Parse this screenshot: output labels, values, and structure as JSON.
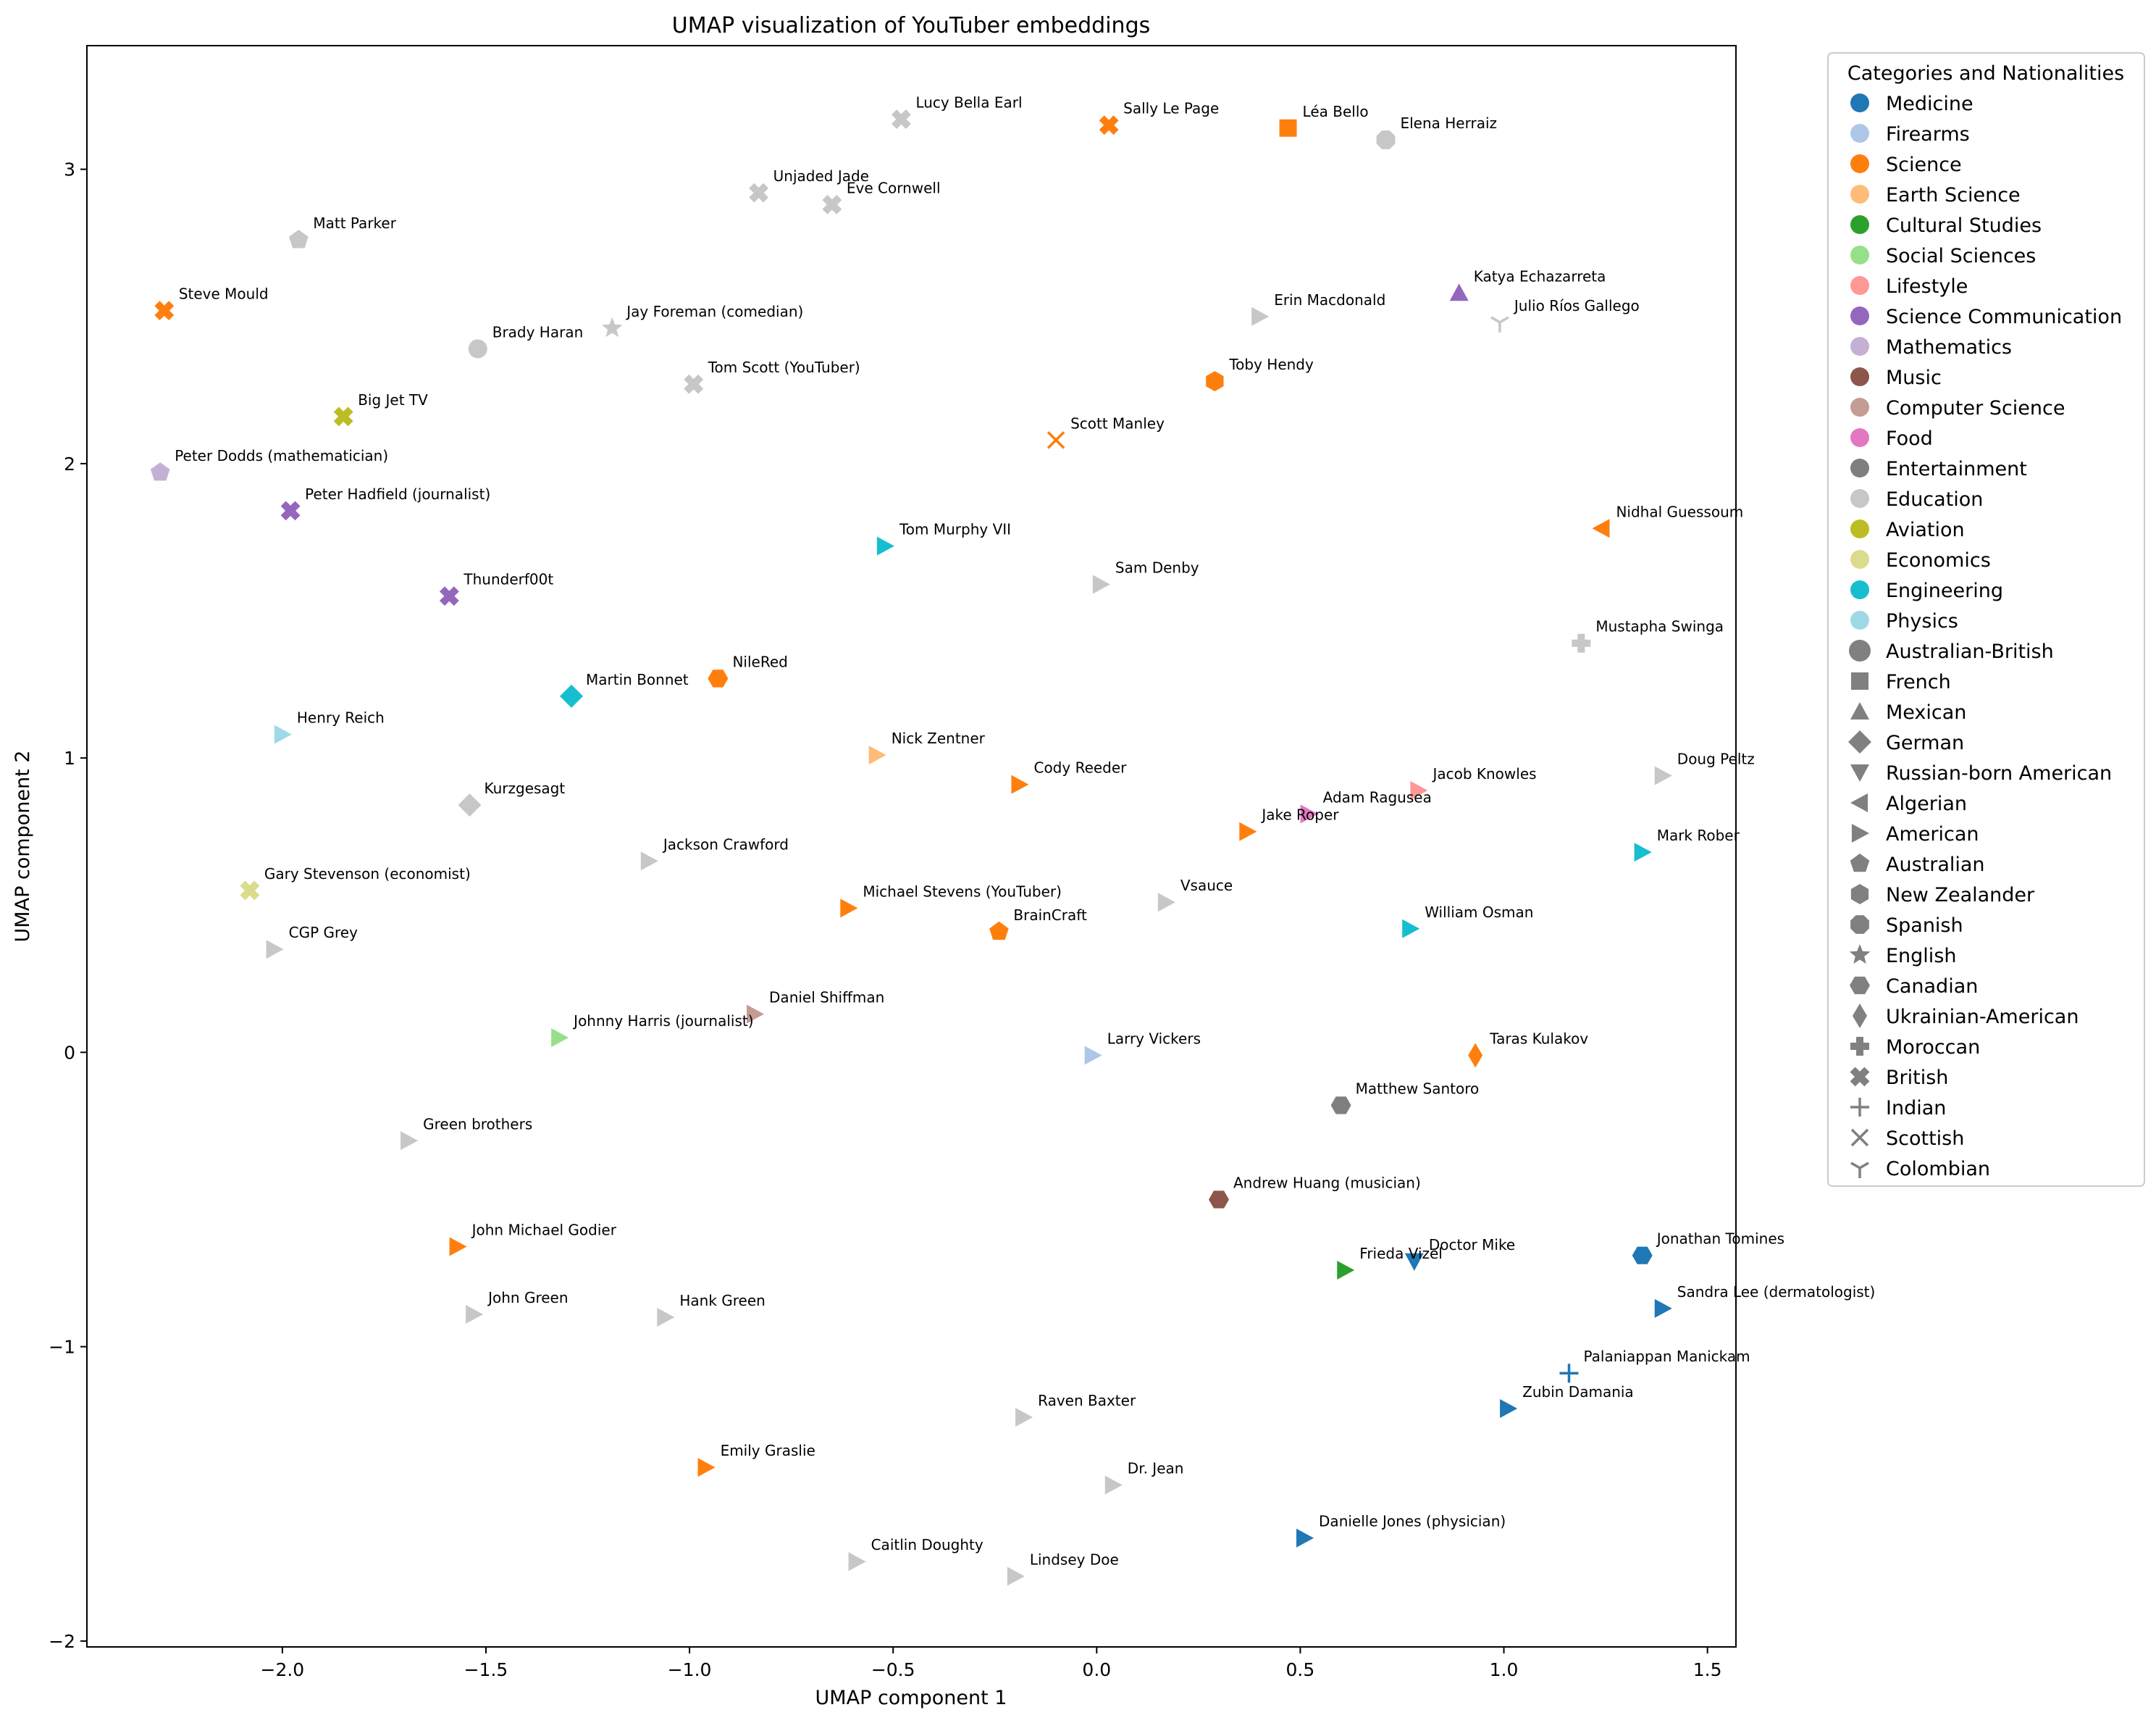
{
  "chart_data": {
    "type": "scatter",
    "title": "UMAP visualization of YouTuber embeddings",
    "xlabel": "UMAP component 1",
    "ylabel": "UMAP component 2",
    "xlim": [
      -2.48,
      1.57
    ],
    "ylim": [
      -2.02,
      3.42
    ],
    "xticks": [
      -2.0,
      -1.5,
      -1.0,
      -0.5,
      0.0,
      0.5,
      1.0,
      1.5
    ],
    "xtick_labels": [
      "−2.0",
      "−1.5",
      "−1.0",
      "−0.5",
      "0.0",
      "0.5",
      "1.0",
      "1.5"
    ],
    "yticks": [
      -2,
      -1,
      0,
      1,
      2,
      3
    ],
    "ytick_labels": [
      "−2",
      "−1",
      "0",
      "1",
      "2",
      "3"
    ],
    "grid": false,
    "legend": {
      "title": "Categories and Nationalities",
      "placement": "outside-right-top",
      "categories": [
        {
          "name": "Medicine",
          "color": "#1f77b4"
        },
        {
          "name": "Firearms",
          "color": "#aec7e8"
        },
        {
          "name": "Science",
          "color": "#ff7f0e"
        },
        {
          "name": "Earth Science",
          "color": "#ffbb78"
        },
        {
          "name": "Cultural Studies",
          "color": "#2ca02c"
        },
        {
          "name": "Social Sciences",
          "color": "#98df8a"
        },
        {
          "name": "Lifestyle",
          "color": "#ff9896"
        },
        {
          "name": "Science Communication",
          "color": "#9467bd"
        },
        {
          "name": "Mathematics",
          "color": "#c5b0d5"
        },
        {
          "name": "Music",
          "color": "#8c564b"
        },
        {
          "name": "Computer Science",
          "color": "#c49c94"
        },
        {
          "name": "Food",
          "color": "#e377c2"
        },
        {
          "name": "Entertainment",
          "color": "#7f7f7f"
        },
        {
          "name": "Education",
          "color": "#c7c7c7"
        },
        {
          "name": "Aviation",
          "color": "#bcbd22"
        },
        {
          "name": "Economics",
          "color": "#dbdb8d"
        },
        {
          "name": "Engineering",
          "color": "#17becf"
        },
        {
          "name": "Physics",
          "color": "#9edae5"
        }
      ],
      "nationalities": [
        {
          "name": "Australian-British",
          "marker": "circle"
        },
        {
          "name": "French",
          "marker": "square"
        },
        {
          "name": "Mexican",
          "marker": "triangle-up"
        },
        {
          "name": "German",
          "marker": "diamond"
        },
        {
          "name": "Russian-born American",
          "marker": "triangle-down"
        },
        {
          "name": "Algerian",
          "marker": "triangle-left"
        },
        {
          "name": "American",
          "marker": "triangle-right"
        },
        {
          "name": "Australian",
          "marker": "pentagon"
        },
        {
          "name": "New Zealander",
          "marker": "hexagon"
        },
        {
          "name": "Spanish",
          "marker": "octagon"
        },
        {
          "name": "English",
          "marker": "star"
        },
        {
          "name": "Canadian",
          "marker": "hexagon2"
        },
        {
          "name": "Ukrainian-American",
          "marker": "thin-diamond"
        },
        {
          "name": "Moroccan",
          "marker": "plus-filled"
        },
        {
          "name": "British",
          "marker": "x-filled"
        },
        {
          "name": "Indian",
          "marker": "plus"
        },
        {
          "name": "Scottish",
          "marker": "x"
        },
        {
          "name": "Colombian",
          "marker": "tri-down"
        }
      ]
    },
    "points": [
      {
        "label": "Lucy Bella Earl",
        "x": -0.48,
        "y": 3.17,
        "category": "Education",
        "nationality": "British"
      },
      {
        "label": "Sally Le Page",
        "x": 0.03,
        "y": 3.15,
        "category": "Science",
        "nationality": "British"
      },
      {
        "label": "Léa Bello",
        "x": 0.47,
        "y": 3.14,
        "category": "Science",
        "nationality": "French"
      },
      {
        "label": "Elena Herraiz",
        "x": 0.71,
        "y": 3.1,
        "category": "Education",
        "nationality": "Spanish"
      },
      {
        "label": "Unjaded Jade",
        "x": -0.83,
        "y": 2.92,
        "category": "Education",
        "nationality": "British"
      },
      {
        "label": "Eve Cornwell",
        "x": -0.65,
        "y": 2.88,
        "category": "Education",
        "nationality": "British"
      },
      {
        "label": "Matt Parker",
        "x": -1.96,
        "y": 2.76,
        "category": "Education",
        "nationality": "Australian"
      },
      {
        "label": "Steve Mould",
        "x": -2.29,
        "y": 2.52,
        "category": "Science",
        "nationality": "British"
      },
      {
        "label": "Katya Echazarreta",
        "x": 0.89,
        "y": 2.58,
        "category": "Science Communication",
        "nationality": "Mexican"
      },
      {
        "label": "Erin Macdonald",
        "x": 0.4,
        "y": 2.5,
        "category": "Education",
        "nationality": "American"
      },
      {
        "label": "Julio Ríos Gallego",
        "x": 0.99,
        "y": 2.48,
        "category": "Education",
        "nationality": "Colombian"
      },
      {
        "label": "Jay Foreman (comedian)",
        "x": -1.19,
        "y": 2.46,
        "category": "Education",
        "nationality": "English"
      },
      {
        "label": "Brady Haran",
        "x": -1.52,
        "y": 2.39,
        "category": "Education",
        "nationality": "Australian-British"
      },
      {
        "label": "Toby Hendy",
        "x": 0.29,
        "y": 2.28,
        "category": "Science",
        "nationality": "New Zealander"
      },
      {
        "label": "Tom Scott (YouTuber)",
        "x": -0.99,
        "y": 2.27,
        "category": "Education",
        "nationality": "British"
      },
      {
        "label": "Big Jet TV",
        "x": -1.85,
        "y": 2.16,
        "category": "Aviation",
        "nationality": "British"
      },
      {
        "label": "Scott Manley",
        "x": -0.1,
        "y": 2.08,
        "category": "Science",
        "nationality": "Scottish"
      },
      {
        "label": "Peter Dodds (mathematician)",
        "x": -2.3,
        "y": 1.97,
        "category": "Mathematics",
        "nationality": "Australian"
      },
      {
        "label": "Peter Hadfield (journalist)",
        "x": -1.98,
        "y": 1.84,
        "category": "Science Communication",
        "nationality": "British"
      },
      {
        "label": "Nidhal Guessoum",
        "x": 1.24,
        "y": 1.78,
        "category": "Science",
        "nationality": "Algerian"
      },
      {
        "label": "Tom Murphy VII",
        "x": -0.52,
        "y": 1.72,
        "category": "Engineering",
        "nationality": "American"
      },
      {
        "label": "Sam Denby",
        "x": 0.01,
        "y": 1.59,
        "category": "Education",
        "nationality": "American"
      },
      {
        "label": "Thunderf00t",
        "x": -1.59,
        "y": 1.55,
        "category": "Science Communication",
        "nationality": "British"
      },
      {
        "label": "Mustapha Swinga",
        "x": 1.19,
        "y": 1.39,
        "category": "Education",
        "nationality": "Moroccan"
      },
      {
        "label": "NileRed",
        "x": -0.93,
        "y": 1.27,
        "category": "Science",
        "nationality": "Canadian"
      },
      {
        "label": "Martin Bonnet",
        "x": -1.29,
        "y": 1.21,
        "category": "Engineering",
        "nationality": "German"
      },
      {
        "label": "Henry Reich",
        "x": -2.0,
        "y": 1.08,
        "category": "Physics",
        "nationality": "American"
      },
      {
        "label": "Nick Zentner",
        "x": -0.54,
        "y": 1.01,
        "category": "Earth Science",
        "nationality": "American"
      },
      {
        "label": "Cody Reeder",
        "x": -0.19,
        "y": 0.91,
        "category": "Science",
        "nationality": "American"
      },
      {
        "label": "Doug Peltz",
        "x": 1.39,
        "y": 0.94,
        "category": "Education",
        "nationality": "American"
      },
      {
        "label": "Jacob Knowles",
        "x": 0.79,
        "y": 0.89,
        "category": "Lifestyle",
        "nationality": "American"
      },
      {
        "label": "Kurzgesagt",
        "x": -1.54,
        "y": 0.84,
        "category": "Education",
        "nationality": "German"
      },
      {
        "label": "Adam Ragusea",
        "x": 0.52,
        "y": 0.81,
        "category": "Food",
        "nationality": "American"
      },
      {
        "label": "Jake Roper",
        "x": 0.37,
        "y": 0.75,
        "category": "Science",
        "nationality": "American"
      },
      {
        "label": "Mark Rober",
        "x": 1.34,
        "y": 0.68,
        "category": "Engineering",
        "nationality": "American"
      },
      {
        "label": "Jackson Crawford",
        "x": -1.1,
        "y": 0.65,
        "category": "Education",
        "nationality": "American"
      },
      {
        "label": "Gary Stevenson (economist)",
        "x": -2.08,
        "y": 0.55,
        "category": "Economics",
        "nationality": "British"
      },
      {
        "label": "Vsauce",
        "x": 0.17,
        "y": 0.51,
        "category": "Education",
        "nationality": "American"
      },
      {
        "label": "Michael Stevens (YouTuber)",
        "x": -0.61,
        "y": 0.49,
        "category": "Science",
        "nationality": "American"
      },
      {
        "label": "William Osman",
        "x": 0.77,
        "y": 0.42,
        "category": "Engineering",
        "nationality": "American"
      },
      {
        "label": "BrainCraft",
        "x": -0.24,
        "y": 0.41,
        "category": "Science",
        "nationality": "Australian"
      },
      {
        "label": "CGP Grey",
        "x": -2.02,
        "y": 0.35,
        "category": "Education",
        "nationality": "American"
      },
      {
        "label": "Daniel Shiffman",
        "x": -0.84,
        "y": 0.13,
        "category": "Computer Science",
        "nationality": "American"
      },
      {
        "label": "Johnny Harris (journalist)",
        "x": -1.32,
        "y": 0.05,
        "category": "Social Sciences",
        "nationality": "American"
      },
      {
        "label": "Larry Vickers",
        "x": -0.01,
        "y": -0.01,
        "category": "Firearms",
        "nationality": "American"
      },
      {
        "label": "Taras Kulakov",
        "x": 0.93,
        "y": -0.01,
        "category": "Science",
        "nationality": "Ukrainian-American"
      },
      {
        "label": "Matthew Santoro",
        "x": 0.6,
        "y": -0.18,
        "category": "Entertainment",
        "nationality": "Canadian"
      },
      {
        "label": "Green brothers",
        "x": -1.69,
        "y": -0.3,
        "category": "Education",
        "nationality": "American"
      },
      {
        "label": "Andrew Huang (musician)",
        "x": 0.3,
        "y": -0.5,
        "category": "Music",
        "nationality": "Canadian"
      },
      {
        "label": "John Michael Godier",
        "x": -1.57,
        "y": -0.66,
        "category": "Science",
        "nationality": "American"
      },
      {
        "label": "Jonathan Tomines",
        "x": 1.34,
        "y": -0.69,
        "category": "Medicine",
        "nationality": "Canadian"
      },
      {
        "label": "Doctor Mike",
        "x": 0.78,
        "y": -0.71,
        "category": "Medicine",
        "nationality": "Russian-born American"
      },
      {
        "label": "Frieda Vizel",
        "x": 0.61,
        "y": -0.74,
        "category": "Cultural Studies",
        "nationality": "American"
      },
      {
        "label": "Sandra Lee (dermatologist)",
        "x": 1.39,
        "y": -0.87,
        "category": "Medicine",
        "nationality": "American"
      },
      {
        "label": "John Green",
        "x": -1.53,
        "y": -0.89,
        "category": "Education",
        "nationality": "American"
      },
      {
        "label": "Hank Green",
        "x": -1.06,
        "y": -0.9,
        "category": "Education",
        "nationality": "American"
      },
      {
        "label": "Palaniappan Manickam",
        "x": 1.16,
        "y": -1.09,
        "category": "Medicine",
        "nationality": "Indian"
      },
      {
        "label": "Zubin Damania",
        "x": 1.01,
        "y": -1.21,
        "category": "Medicine",
        "nationality": "American"
      },
      {
        "label": "Raven Baxter",
        "x": -0.18,
        "y": -1.24,
        "category": "Education",
        "nationality": "American"
      },
      {
        "label": "Emily Graslie",
        "x": -0.96,
        "y": -1.41,
        "category": "Science",
        "nationality": "American"
      },
      {
        "label": "Dr. Jean",
        "x": 0.04,
        "y": -1.47,
        "category": "Education",
        "nationality": "American"
      },
      {
        "label": "Danielle Jones (physician)",
        "x": 0.51,
        "y": -1.65,
        "category": "Medicine",
        "nationality": "American"
      },
      {
        "label": "Caitlin Doughty",
        "x": -0.59,
        "y": -1.73,
        "category": "Education",
        "nationality": "American"
      },
      {
        "label": "Lindsey Doe",
        "x": -0.2,
        "y": -1.78,
        "category": "Education",
        "nationality": "American"
      }
    ]
  }
}
